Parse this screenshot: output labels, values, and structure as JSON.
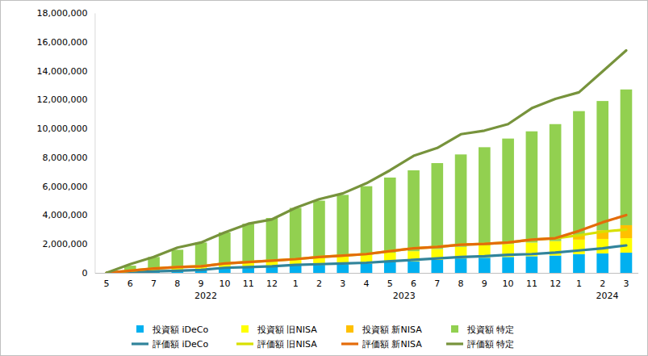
{
  "chart_data": {
    "type": "bar",
    "stacked": true,
    "legend": "bottom",
    "categories": [
      "5",
      "6",
      "7",
      "8",
      "9",
      "10",
      "11",
      "12",
      "1",
      "2",
      "3",
      "4",
      "5",
      "6",
      "7",
      "8",
      "9",
      "10",
      "11",
      "12",
      "1",
      "2",
      "3"
    ],
    "annotations": [
      {
        "text": "2022",
        "at": 4.2
      },
      {
        "text": "2023",
        "at": 12.6
      },
      {
        "text": "2024",
        "at": 21.2
      }
    ],
    "ylim": [
      0,
      18000000
    ],
    "yticks": [
      0,
      {
        "value": 2000000,
        "label": "2,000,000"
      },
      {
        "value": 4000000,
        "label": "4,000,000"
      },
      {
        "value": 6000000,
        "label": "6,000,000"
      },
      {
        "value": 8000000,
        "label": "8,000,000"
      },
      {
        "value": 10000000,
        "label": "10,000,000"
      },
      {
        "value": 12000000,
        "label": "12,000,000"
      },
      {
        "value": 14000000,
        "label": "14,000,000"
      },
      {
        "value": 16000000,
        "label": "16,000,000"
      },
      {
        "value": 18000000,
        "label": "18,000,000"
      }
    ],
    "series": [
      {
        "name": "投資額 iDeCo",
        "type": "bar",
        "color": "#00b0f0",
        "values": [
          0,
          50000,
          100000,
          150000,
          200000,
          300000,
          350000,
          400000,
          500000,
          550000,
          600000,
          650000,
          750000,
          800000,
          900000,
          1000000,
          1050000,
          1100000,
          1150000,
          1200000,
          1300000,
          1350000,
          1400000
        ]
      },
      {
        "name": "投資額 旧NISA",
        "type": "bar",
        "color": "#ffff00",
        "values": [
          0,
          50000,
          150000,
          200000,
          250000,
          300000,
          350000,
          400000,
          450000,
          500000,
          550000,
          600000,
          650000,
          700000,
          750000,
          800000,
          850000,
          900000,
          950000,
          1000000,
          1000000,
          1000000,
          1000000
        ]
      },
      {
        "name": "投資額 新NISA",
        "type": "bar",
        "color": "#ffc000",
        "values": [
          0,
          0,
          0,
          0,
          0,
          0,
          0,
          0,
          0,
          0,
          0,
          0,
          0,
          0,
          0,
          0,
          0,
          0,
          0,
          0,
          300000,
          600000,
          900000
        ]
      },
      {
        "name": "投資額 特定",
        "type": "bar",
        "color": "#92d050",
        "values": [
          0,
          400000,
          850000,
          1250000,
          1650000,
          2200000,
          2700000,
          3000000,
          3550000,
          3950000,
          4250000,
          4750000,
          5200000,
          5600000,
          5950000,
          6400000,
          6800000,
          7300000,
          7700000,
          8100000,
          8600000,
          8950000,
          9400000
        ]
      },
      {
        "name": "評価額 iDeCo",
        "type": "line",
        "color": "#31849b",
        "values": [
          0,
          50000,
          100000,
          150000,
          200000,
          350000,
          400000,
          450000,
          550000,
          600000,
          650000,
          700000,
          800000,
          900000,
          1000000,
          1100000,
          1150000,
          1250000,
          1300000,
          1400000,
          1550000,
          1700000,
          1900000
        ]
      },
      {
        "name": "評価額 旧NISA",
        "type": "line",
        "color": "#d8e000",
        "values": [
          0,
          100000,
          200000,
          250000,
          250000,
          300000,
          350000,
          400000,
          400000,
          500000,
          550000,
          600000,
          700000,
          800000,
          800000,
          850000,
          850000,
          850000,
          1000000,
          1000000,
          1050000,
          1150000,
          1100000
        ]
      },
      {
        "name": "評価額 新NISA",
        "type": "line",
        "color": "#e46c0a",
        "values": [
          0,
          0,
          0,
          0,
          0,
          0,
          0,
          0,
          0,
          0,
          0,
          0,
          0,
          0,
          0,
          0,
          0,
          0,
          0,
          0,
          300000,
          650000,
          1000000
        ]
      },
      {
        "name": "評価額 特定",
        "type": "line",
        "color": "#77933c",
        "values": [
          0,
          450000,
          800000,
          1350000,
          1650000,
          2150000,
          2650000,
          2850000,
          3550000,
          4000000,
          4300000,
          4900000,
          5600000,
          6400000,
          6850000,
          7650000,
          7850000,
          8200000,
          9100000,
          9650000,
          9600000,
          10450000,
          11400000
        ]
      }
    ]
  }
}
